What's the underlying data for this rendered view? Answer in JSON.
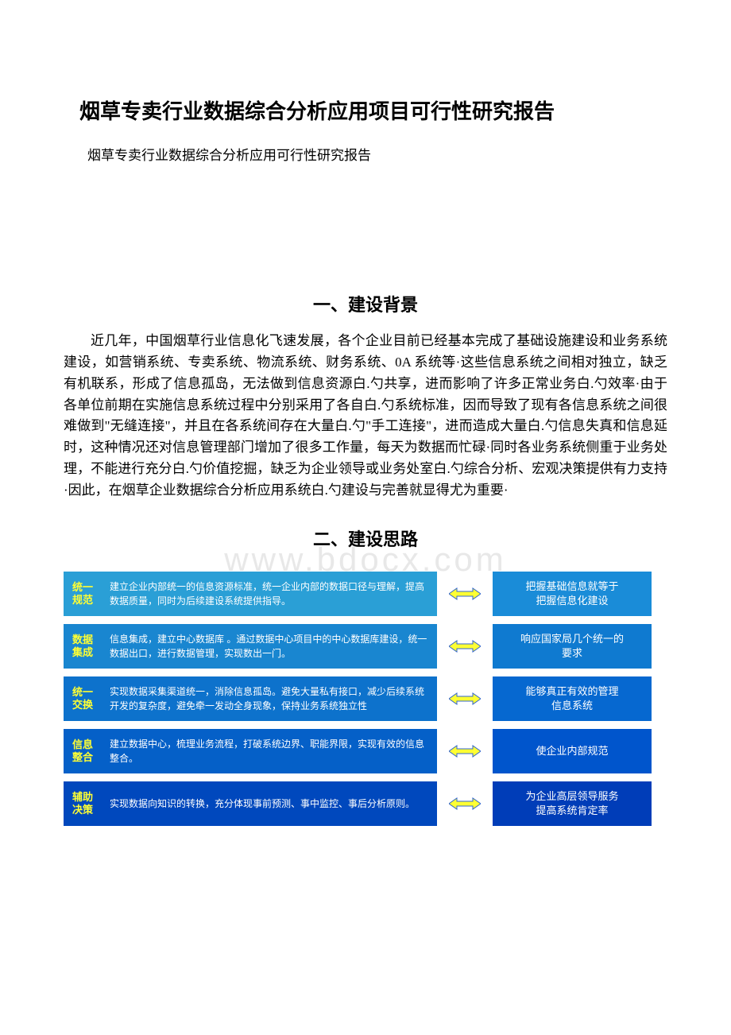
{
  "title": "烟草专卖行业数据综合分析应用项目可行性研究报告",
  "subtitle": "烟草专卖行业数据综合分析应用可行性研究报告",
  "watermark": "www.bdocx.com",
  "section1": {
    "heading": "一、建设背景",
    "body": "近几年，中国烟草行业信息化飞速发展，各个企业目前已经基本完成了基础设施建设和业务系统建设，如营销系统、专卖系统、物流系统、财务系统、0A 系统等·这些信息系统之间相对独立，缺乏有机联系，形成了信息孤岛，无法做到信息资源白.勺共享，进而影响了许多正常业务白.勺效率·由于各单位前期在实施信息系统过程中分别采用了各自白.勺系统标准，因而导致了现有各信息系统之间很难做到\"无缝连接\"，并且在各系统间存在大量白.勺\"手工连接\"，进而造成大量白.勺信息失真和信息延时，这种情况还对信息管理部门增加了很多工作量，每天为数据而忙碌·同时各业务系统侧重于业务处理，不能进行充分白.勺价值挖掘，缺乏为企业领导或业务处室白.勺综合分析、宏观决策提供有力支持·因此，在烟草企业数据综合分析应用系统白.勺建设与完善就显得尤为重要·"
  },
  "section2": {
    "heading": "二、建设思路"
  },
  "diagram": {
    "arrow_fill": "#ffff33",
    "arrow_stroke": "#3366cc",
    "steps": [
      {
        "label_l1": "统一",
        "label_l2": "规范",
        "desc": "建立企业内部统一的信息资源标准，统一企业内部的数据口径与理解，提高数据质量，同时为后续建设系统提供指导。",
        "right": "把握基础信息就等于\n把握信息化建设",
        "left_bg": "#2a9fd6",
        "right_bg": "#1a8cd8"
      },
      {
        "label_l1": "数据",
        "label_l2": "集成",
        "desc": "信息集成，建立中心数据库 。通过数据中心项目中的中心数据库建设，统一数据出口，进行数据管理，实现数出一门。",
        "right": "响应国家局几个统一的\n要求",
        "left_bg": "#1986d0",
        "right_bg": "#0f7ad0"
      },
      {
        "label_l1": "统一",
        "label_l2": "交换",
        "desc": "实现数据采集渠道统一，消除信息孤岛。避免大量私有接口，减少后续系统开发的复杂度，避免牵一发动全身现象，保持业务系统独立性",
        "right": "能够真正有效的管理\n信息系统",
        "left_bg": "#0d72cc",
        "right_bg": "#0668d0"
      },
      {
        "label_l1": "信息",
        "label_l2": "整合",
        "desc": "建立数据中心，梳理业务流程，打破系统边界、职能界限，实现有效的信息整合。",
        "right": "使企业内部规范",
        "left_bg": "#0560c8",
        "right_bg": "#0055cc"
      },
      {
        "label_l1": "辅助",
        "label_l2": "决策",
        "desc": "实现数据向知识的转换，充分体现事前预测、事中监控、事后分析原则。",
        "right": "为企业高层领导服务\n提高系统肯定率",
        "left_bg": "#0048bd",
        "right_bg": "#003db8"
      }
    ]
  }
}
